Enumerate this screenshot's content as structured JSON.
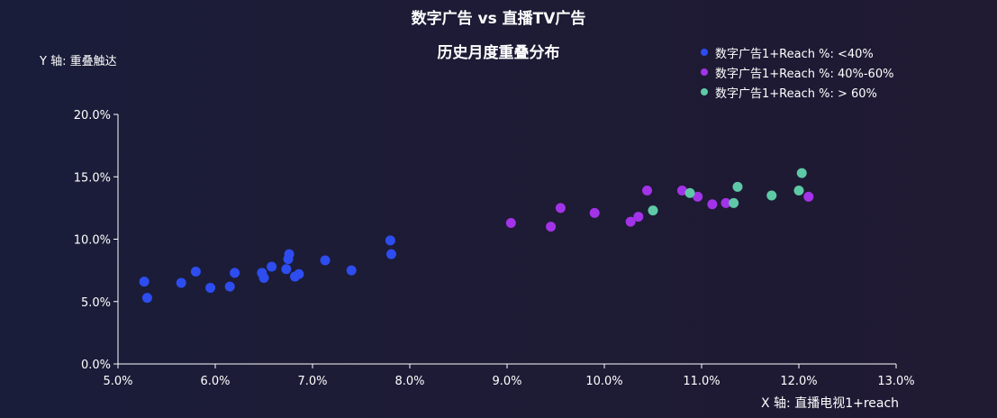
{
  "chart_data": {
    "type": "scatter",
    "title": "数字广告 vs 直播TV广告",
    "subtitle": "历史月度重叠分布",
    "xlabel": "X 轴:   直播电视1+reach",
    "ylabel": "Y 轴: 重叠触达",
    "xlim": [
      5.0,
      13.0
    ],
    "ylim": [
      0.0,
      20.0
    ],
    "x_ticks": [
      "5.0%",
      "6.0%",
      "7.0%",
      "8.0%",
      "9.0%",
      "10.0%",
      "11.0%",
      "12.0%",
      "13.0%"
    ],
    "y_ticks": [
      "0.0%",
      "5.0%",
      "10.0%",
      "15.0%",
      "20.0%"
    ],
    "grid": false,
    "legend_position": "top-right",
    "series": [
      {
        "name": "数字广告1+Reach %: <40%",
        "color": "#2d4df0",
        "points": [
          [
            5.27,
            6.6
          ],
          [
            5.3,
            5.3
          ],
          [
            5.65,
            6.5
          ],
          [
            5.8,
            7.4
          ],
          [
            5.95,
            6.1
          ],
          [
            6.15,
            6.2
          ],
          [
            6.2,
            7.3
          ],
          [
            6.48,
            7.3
          ],
          [
            6.5,
            6.9
          ],
          [
            6.58,
            7.8
          ],
          [
            6.73,
            7.6
          ],
          [
            6.75,
            8.4
          ],
          [
            6.76,
            8.8
          ],
          [
            6.82,
            7.0
          ],
          [
            6.86,
            7.2
          ],
          [
            7.13,
            8.3
          ],
          [
            7.4,
            7.5
          ],
          [
            7.8,
            9.9
          ],
          [
            7.81,
            8.8
          ]
        ]
      },
      {
        "name": "数字广告1+Reach %: 40%-60%",
        "color": "#a333e8",
        "points": [
          [
            9.04,
            11.3
          ],
          [
            9.45,
            11.0
          ],
          [
            9.55,
            12.5
          ],
          [
            9.9,
            12.1
          ],
          [
            10.27,
            11.4
          ],
          [
            10.35,
            11.8
          ],
          [
            10.44,
            13.9
          ],
          [
            10.8,
            13.9
          ],
          [
            10.96,
            13.4
          ],
          [
            11.11,
            12.8
          ],
          [
            11.25,
            12.9
          ],
          [
            12.1,
            13.4
          ]
        ]
      },
      {
        "name": "数字广告1+Reach %:  > 60%",
        "color": "#5ec9a6",
        "points": [
          [
            10.5,
            12.3
          ],
          [
            10.88,
            13.7
          ],
          [
            11.33,
            12.9
          ],
          [
            11.37,
            14.2
          ],
          [
            11.72,
            13.5
          ],
          [
            12.0,
            13.9
          ],
          [
            12.03,
            15.3
          ]
        ]
      }
    ]
  }
}
